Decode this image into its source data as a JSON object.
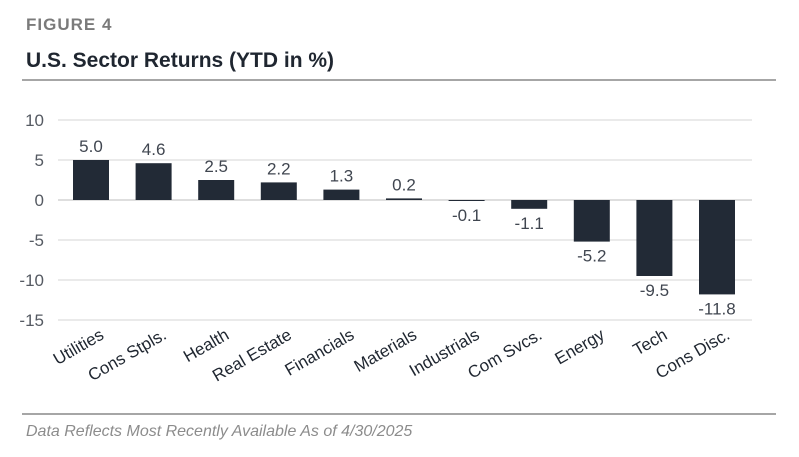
{
  "figure_label": "FIGURE 4",
  "title": "U.S. Sector Returns (YTD in %)",
  "footnote": "Data Reflects Most Recently Available As of 4/30/2025",
  "colors": {
    "bar": "#222a36",
    "grid": "#d4d4d4",
    "rule": "#a6a6a6"
  },
  "chart_data": {
    "type": "bar",
    "categories": [
      "Utilities",
      "Cons Stpls.",
      "Health",
      "Real Estate",
      "Financials",
      "Materials",
      "Industrials",
      "Com Svcs.",
      "Energy",
      "Tech",
      "Cons Disc."
    ],
    "values": [
      5.0,
      4.6,
      2.5,
      2.2,
      1.3,
      0.2,
      -0.1,
      -1.1,
      -5.2,
      -9.5,
      -11.8
    ],
    "value_labels": [
      "5.0",
      "4.6",
      "2.5",
      "2.2",
      "1.3",
      "0.2",
      "-0.1",
      "-1.1",
      "-5.2",
      "-9.5",
      "-11.8"
    ],
    "y_ticks": [
      "10",
      "5",
      "0",
      "-5",
      "-10",
      "-15"
    ],
    "ylim": [
      -15,
      10
    ],
    "xlabel": "",
    "ylabel": "",
    "grid": true,
    "legend": "none"
  }
}
